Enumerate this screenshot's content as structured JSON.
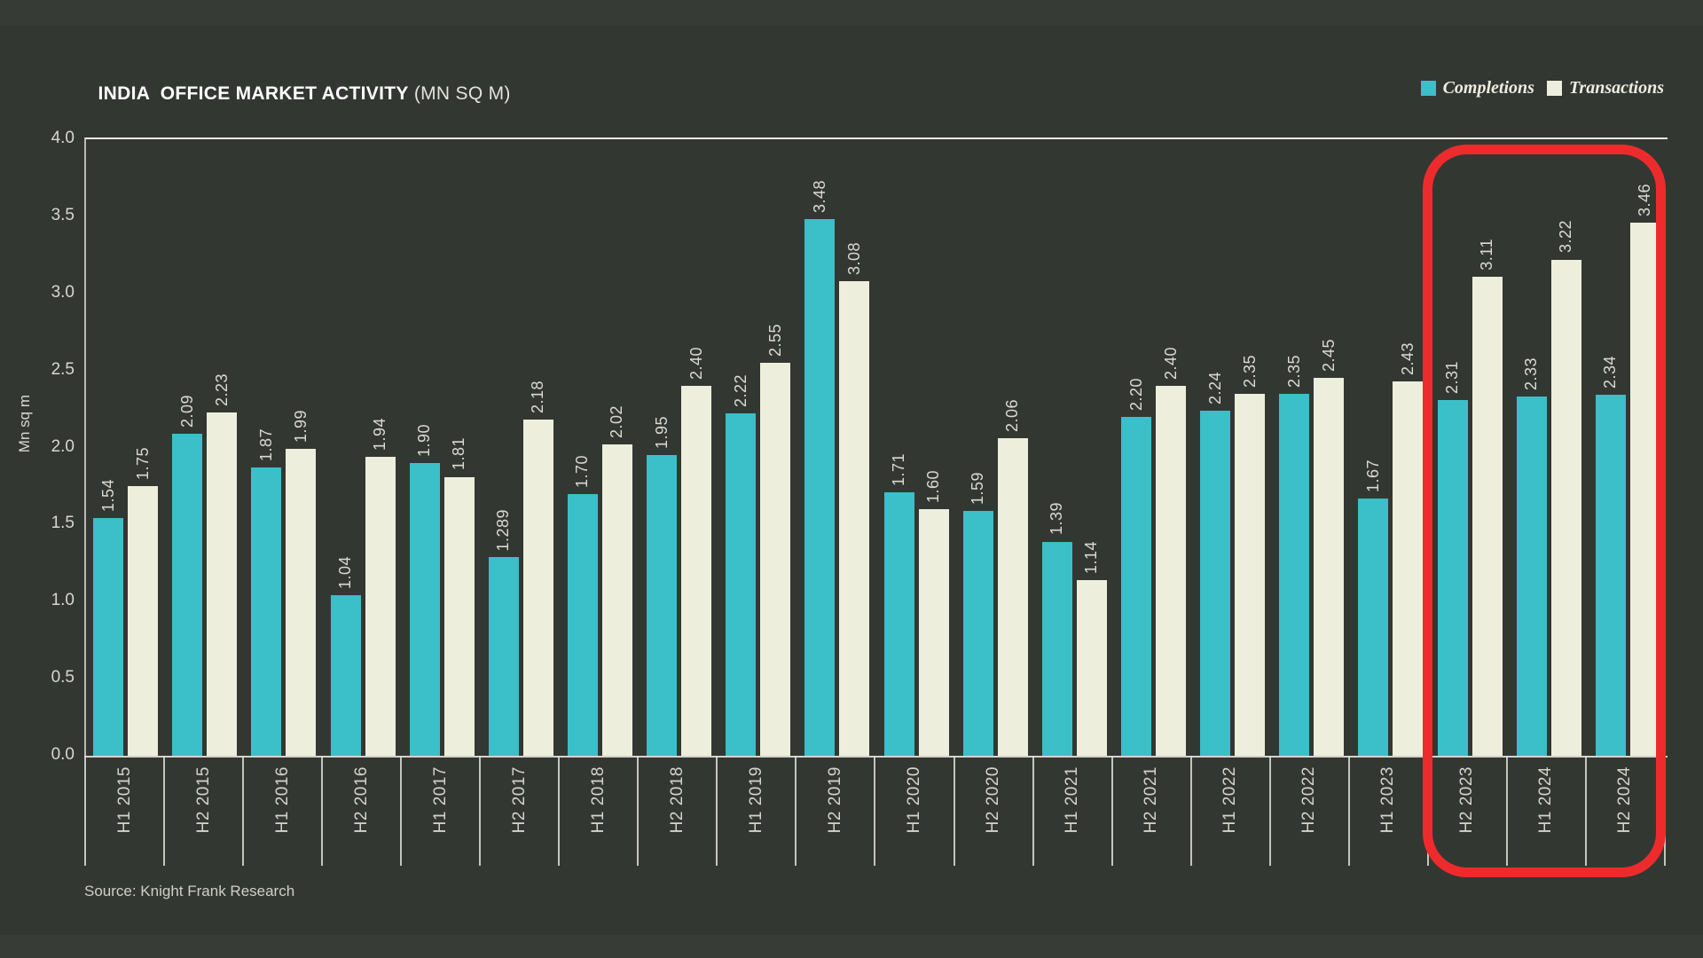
{
  "page": {
    "title_main": "INDIA  OFFICE MARKET ACTIVITY",
    "title_unit": " (MN SQ M)",
    "source": "Source: Knight Frank Research"
  },
  "legend": [
    {
      "label": "Completions",
      "color": "#3bbfc9",
      "icon": "legend-swatch-teal"
    },
    {
      "label": "Transactions",
      "color": "#eeeedd",
      "icon": "legend-swatch-cream"
    }
  ],
  "colors": {
    "background": "#333732",
    "completions": "#3bbfc9",
    "transactions": "#eeeedd",
    "highlight_red": "#ee2b2c",
    "text_light": "#d8d8d0",
    "axis_line": "#d3d3cc"
  },
  "chart_data": {
    "type": "bar",
    "title": "INDIA OFFICE MARKET ACTIVITY (MN SQ M)",
    "xlabel": "",
    "ylabel": "Mn sq m",
    "ylim": [
      0.0,
      4.0
    ],
    "ytick_step": 0.5,
    "ytick_labels": [
      "0.0",
      "0.5",
      "1.0",
      "1.5",
      "2.0",
      "2.5",
      "3.0",
      "3.5",
      "4.0"
    ],
    "grid": false,
    "legend_position": "top-right",
    "bar_label_rotation": 90,
    "x_label_rotation": 90,
    "categories": [
      "H1 2015",
      "H2 2015",
      "H1 2016",
      "H2 2016",
      "H1 2017",
      "H2 2017",
      "H1 2018",
      "H2 2018",
      "H1 2019",
      "H2 2019",
      "H1 2020",
      "H2 2020",
      "H1 2021",
      "H2 2021",
      "H1 2022",
      "H2 2022",
      "H1 2023",
      "H2 2023",
      "H1 2024",
      "H2 2024"
    ],
    "series": [
      {
        "name": "Completions",
        "color": "#3bbfc9",
        "values": [
          1.54,
          2.09,
          1.87,
          1.04,
          1.9,
          1.289,
          1.7,
          1.95,
          2.22,
          3.48,
          1.71,
          1.59,
          1.39,
          2.2,
          2.24,
          2.35,
          1.67,
          2.31,
          2.33,
          2.34
        ],
        "labels": [
          "1.54",
          "2.09",
          "1.87",
          "1.04",
          "1.90",
          "1.289",
          "1.70",
          "1.95",
          "2.22",
          "3.48",
          "1.71",
          "1.59",
          "1.39",
          "2.20",
          "2.24",
          "2.35",
          "1.67",
          "2.31",
          "2.33",
          "2.34"
        ]
      },
      {
        "name": "Transactions",
        "color": "#eeeedd",
        "values": [
          1.75,
          2.23,
          1.99,
          1.94,
          1.81,
          2.18,
          2.02,
          2.4,
          2.55,
          3.08,
          1.6,
          2.06,
          1.14,
          2.4,
          2.35,
          2.45,
          2.43,
          3.11,
          3.22,
          3.46
        ],
        "labels": [
          "1.75",
          "2.23",
          "1.99",
          "1.94",
          "1.81",
          "2.18",
          "2.02",
          "2.40",
          "2.55",
          "3.08",
          "1.60",
          "2.06",
          "1.14",
          "2.40",
          "2.35",
          "2.45",
          "2.43",
          "3.11",
          "3.22",
          "3.46"
        ]
      }
    ],
    "highlight": {
      "categories": [
        "H2 2023",
        "H1 2024",
        "H2 2024"
      ],
      "color": "#ee2b2c",
      "style": "rounded-rect-outline"
    }
  }
}
